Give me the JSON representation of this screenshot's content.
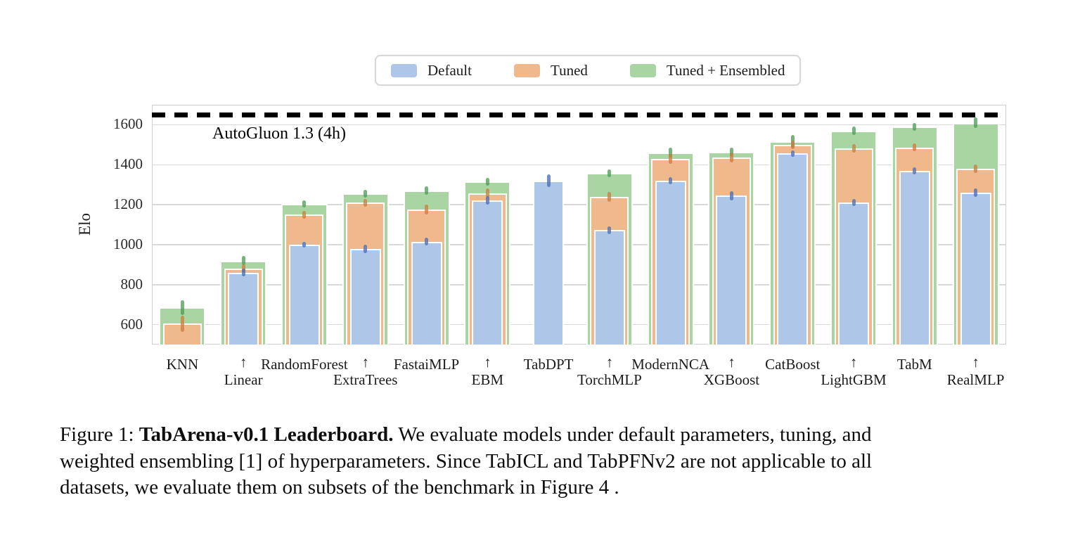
{
  "figure": {
    "caption": {
      "line1_prefix": "Figure 1: ",
      "line1_bold": "TabArena-v0.1 Leaderboard.",
      "line1_rest": " We evaluate models under default parameters, tuning, and",
      "line2": "weighted ensembling [1] of hyperparameters. Since TabICL and TabPFNv2 are not applicable to all",
      "line3": "datasets, we evaluate them on subsets of the benchmark in Figure 4 ."
    }
  },
  "chart_data": {
    "type": "bar",
    "title": "",
    "xlabel": "",
    "ylabel": "Elo",
    "ylim": [
      500,
      1700
    ],
    "yticks": [
      600,
      800,
      1000,
      1200,
      1400,
      1600
    ],
    "grid": true,
    "legend_position": "top-center",
    "reference_line": {
      "label": "AutoGluon 1.3 (4h)",
      "value": 1650,
      "style": "dashed-black"
    },
    "categories": [
      "KNN",
      "Linear",
      "RandomForest",
      "ExtraTrees",
      "FastaiMLP",
      "EBM",
      "TabDPT",
      "TorchMLP",
      "ModernNCA",
      "XGBoost",
      "CatBoost",
      "LightGBM",
      "TabM",
      "RealMLP"
    ],
    "series": [
      {
        "name": "Default",
        "color": "#aec7e8",
        "err_color": "#4e6fb4",
        "values": [
          null,
          860,
          1000,
          978,
          1015,
          1222,
          1320,
          1072,
          1320,
          1245,
          1456,
          1212,
          1370,
          1260
        ],
        "errors": [
          null,
          20,
          15,
          22,
          20,
          20,
          30,
          20,
          18,
          22,
          15,
          18,
          18,
          20
        ]
      },
      {
        "name": "Tuned",
        "color": "#f0b98c",
        "err_color": "#cd7d3d",
        "values": [
          605,
          880,
          1150,
          1210,
          1175,
          1258,
          null,
          1240,
          1428,
          1435,
          1500,
          1481,
          1486,
          1380
        ],
        "errors": [
          40,
          22,
          20,
          20,
          25,
          22,
          null,
          25,
          25,
          25,
          20,
          22,
          20,
          22
        ]
      },
      {
        "name": "Tuned + Ensembled",
        "color": "#a8d5a2",
        "err_color": "#4f9e58",
        "values": [
          685,
          920,
          1205,
          1255,
          1270,
          1315,
          null,
          1357,
          1462,
          1465,
          1517,
          1570,
          1590,
          1610
        ],
        "errors": [
          38,
          22,
          18,
          20,
          22,
          20,
          null,
          20,
          25,
          22,
          30,
          22,
          20,
          25
        ]
      }
    ]
  }
}
